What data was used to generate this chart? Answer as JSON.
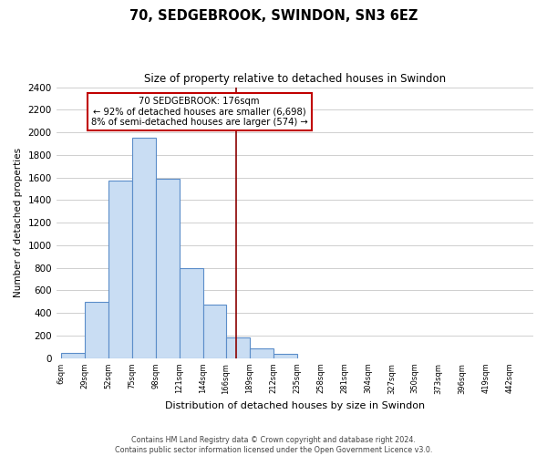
{
  "title": "70, SEDGEBROOK, SWINDON, SN3 6EZ",
  "subtitle": "Size of property relative to detached houses in Swindon",
  "xlabel": "Distribution of detached houses by size in Swindon",
  "ylabel": "Number of detached properties",
  "bar_color": "#c9ddf3",
  "bar_edge_color": "#5b8dc9",
  "background_color": "#ffffff",
  "grid_color": "#c8c8c8",
  "annotation_box_color": "#ffffff",
  "annotation_border_color": "#c00000",
  "property_line_color": "#8b0000",
  "footer_line1": "Contains HM Land Registry data © Crown copyright and database right 2024.",
  "footer_line2": "Contains public sector information licensed under the Open Government Licence v3.0.",
  "annotation_title": "70 SEDGEBROOK: 176sqm",
  "annotation_line1": "← 92% of detached houses are smaller (6,698)",
  "annotation_line2": "8% of semi-detached houses are larger (574) →",
  "property_size": 176,
  "bin_edges": [
    6,
    29,
    52,
    75,
    98,
    121,
    144,
    166,
    189,
    212,
    235,
    258,
    281,
    304,
    327,
    350,
    373,
    396,
    419,
    442,
    465
  ],
  "bin_counts": [
    50,
    500,
    1575,
    1950,
    1590,
    800,
    475,
    185,
    90,
    35,
    0,
    0,
    0,
    0,
    0,
    0,
    0,
    0,
    0,
    0
  ],
  "ylim": [
    0,
    2400
  ],
  "yticks": [
    0,
    200,
    400,
    600,
    800,
    1000,
    1200,
    1400,
    1600,
    1800,
    2000,
    2200,
    2400
  ]
}
